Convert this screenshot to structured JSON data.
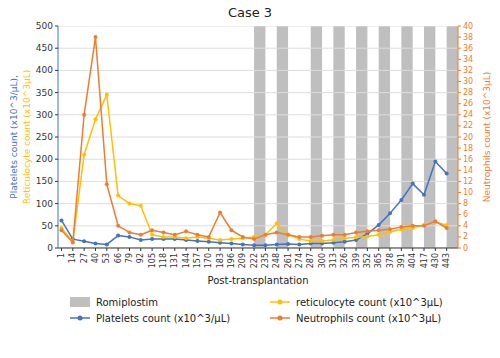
{
  "chart_data": {
    "type": "line",
    "title": "Case 3",
    "xlabel": "Post-transplantation",
    "ylabel": [
      "Platelets count (x10^3/μL),",
      "Reticulocyte count (x10^3μL)"
    ],
    "y2label": "Neutrophils count (x10^3μL)",
    "x": [
      1,
      14,
      27,
      40,
      53,
      66,
      79,
      92,
      105,
      118,
      131,
      144,
      157,
      170,
      183,
      196,
      209,
      222,
      235,
      248,
      261,
      274,
      287,
      300,
      313,
      326,
      339,
      352,
      365,
      378,
      391,
      404,
      417,
      430,
      443
    ],
    "xlim": [
      -3,
      456
    ],
    "xticks": [
      1,
      14,
      27,
      40,
      53,
      66,
      79,
      92,
      105,
      118,
      131,
      144,
      157,
      170,
      183,
      196,
      209,
      222,
      235,
      248,
      261,
      274,
      287,
      300,
      313,
      326,
      339,
      352,
      365,
      378,
      391,
      404,
      417,
      430,
      443
    ],
    "ylim": [
      0,
      500
    ],
    "yticks": [
      0,
      50,
      100,
      150,
      200,
      250,
      300,
      350,
      400,
      450,
      500
    ],
    "y2lim": [
      0,
      40
    ],
    "y2ticks": [
      0,
      2,
      4,
      6,
      8,
      10,
      12,
      14,
      16,
      18,
      20,
      22,
      24,
      26,
      28,
      30,
      32,
      34,
      36,
      38,
      40
    ],
    "grid": true,
    "legend": "bottom",
    "marker": "circle",
    "bands": {
      "name": "Romiplostim",
      "color": "#BFBFBF",
      "intervals": [
        [
          222,
          235
        ],
        [
          248,
          261
        ],
        [
          287,
          300
        ],
        [
          313,
          326
        ],
        [
          339,
          352
        ],
        [
          365,
          378
        ],
        [
          391,
          404
        ],
        [
          417,
          430
        ],
        [
          443,
          456
        ]
      ]
    },
    "series": [
      {
        "name": "Platelets count (x10^3/μL)",
        "color": "#4472C4",
        "values": [
          62,
          20,
          15,
          10,
          8,
          28,
          25,
          18,
          20,
          20,
          20,
          18,
          16,
          14,
          12,
          10,
          8,
          6,
          6,
          8,
          9,
          8,
          10,
          10,
          12,
          14,
          18,
          32,
          52,
          78,
          108,
          145,
          120,
          195,
          168
        ]
      },
      {
        "name": "reticulocyte count (x10^3μL)",
        "color": "#FFC000",
        "values": [
          45,
          14,
          210,
          290,
          345,
          118,
          100,
          95,
          30,
          25,
          25,
          22,
          25,
          22,
          18,
          20,
          22,
          25,
          30,
          55,
          30,
          20,
          16,
          16,
          18,
          22,
          24,
          26,
          30,
          36,
          42,
          45,
          52,
          58,
          52
        ]
      },
      {
        "name": "Neutrophils count (x10^3μL)",
        "color": "#ED7D31",
        "axis": "y2",
        "values": [
          3.2,
          1.0,
          24,
          38,
          11.5,
          4.0,
          2.8,
          2.4,
          3.2,
          2.8,
          2.4,
          3.0,
          2.4,
          2.0,
          6.4,
          3.2,
          2.0,
          1.6,
          2.4,
          2.8,
          2.4,
          2.0,
          2.0,
          2.2,
          2.4,
          2.4,
          2.8,
          3.0,
          3.2,
          3.4,
          3.8,
          4.0,
          4.0,
          4.8,
          3.6
        ]
      }
    ]
  }
}
